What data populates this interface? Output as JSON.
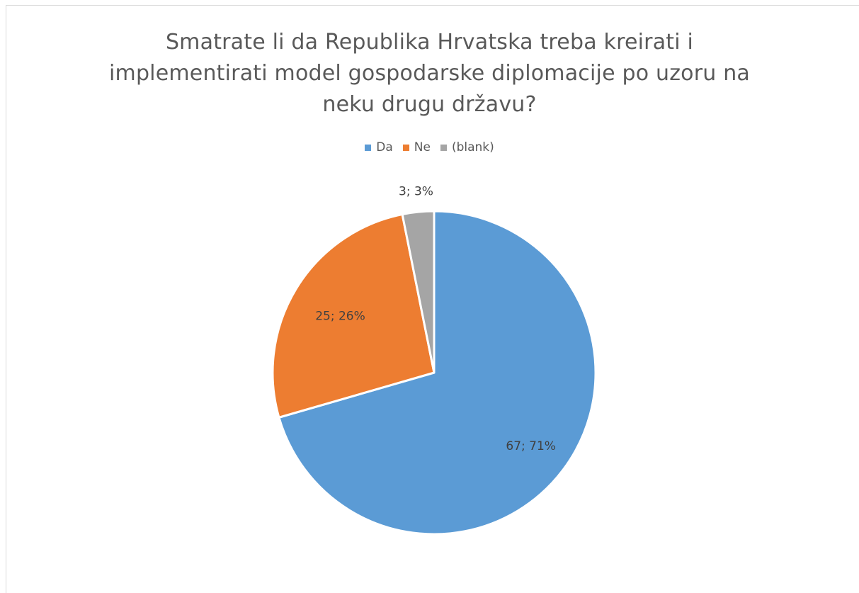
{
  "chart_data": {
    "type": "pie",
    "title_lines": [
      "Smatrate li da Republika Hrvatska treba kreirati i",
      "implementirati model gospodarske diplomacije po uzoru na",
      "neku drugu državu?"
    ],
    "categories": [
      "Da",
      "Ne",
      "(blank)"
    ],
    "values": [
      67,
      25,
      3
    ],
    "percentages": [
      71,
      26,
      3
    ],
    "data_labels": [
      "67; 71%",
      "25; 26%",
      "3; 3%"
    ],
    "colors": [
      "#5b9bd5",
      "#ed7d31",
      "#a5a5a5"
    ],
    "legend_position": "top",
    "start_angle": "12 o'clock, clockwise"
  }
}
